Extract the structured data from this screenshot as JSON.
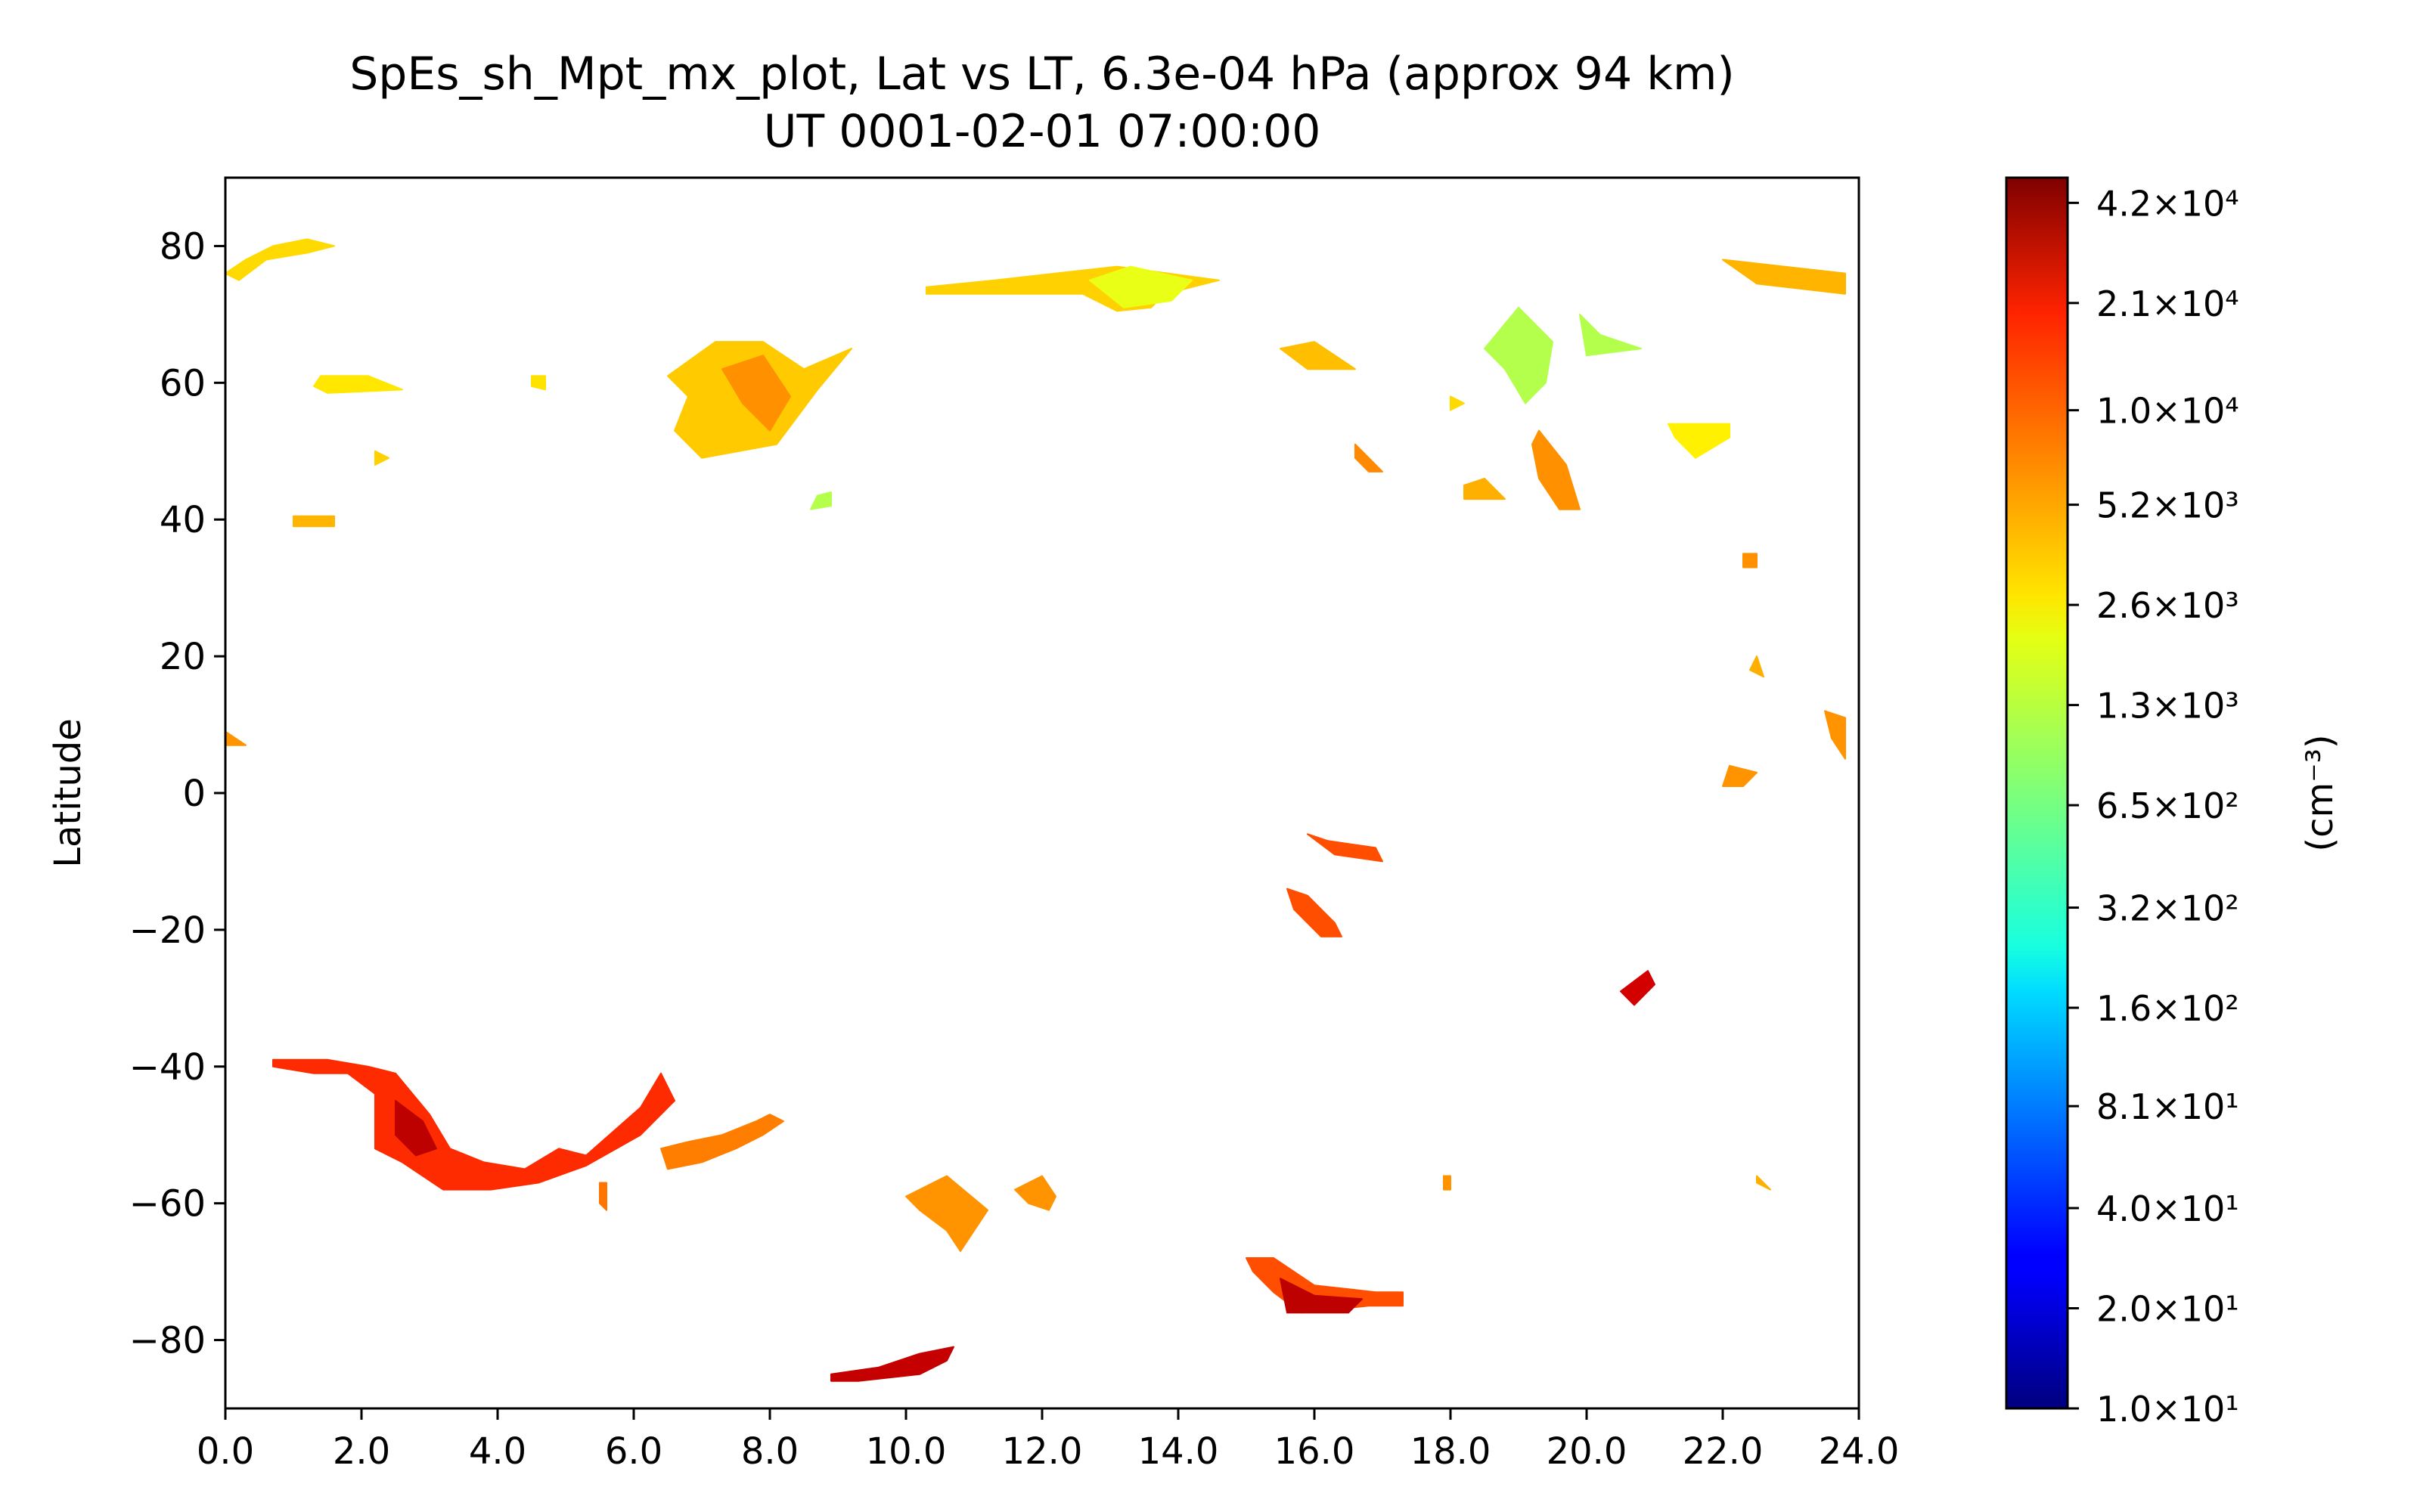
{
  "chart_data": {
    "type": "heatmap",
    "title": "SpEs_sh_Mpt_mx_plot, Lat vs LT, 6.3e-04 hPa (approx 94 km)",
    "subtitle": "UT 0001-02-01 07:00:00",
    "xlabel": "",
    "ylabel": "Latitude",
    "xlim": [
      0,
      24
    ],
    "ylim": [
      -90,
      90
    ],
    "x_ticks": [
      "0.0",
      "2.0",
      "4.0",
      "6.0",
      "8.0",
      "10.0",
      "12.0",
      "14.0",
      "16.0",
      "18.0",
      "20.0",
      "22.0",
      "24.0"
    ],
    "x_tick_values": [
      0,
      2,
      4,
      6,
      8,
      10,
      12,
      14,
      16,
      18,
      20,
      22,
      24
    ],
    "y_ticks": [
      "80",
      "60",
      "40",
      "20",
      "0",
      "−20",
      "−40",
      "−60",
      "−80"
    ],
    "y_tick_values": [
      80,
      60,
      40,
      20,
      0,
      -20,
      -40,
      -60,
      -80
    ],
    "colorbar": {
      "label": "(cm⁻³)",
      "scale": "log",
      "min": 10,
      "max": 50000,
      "colormap": "jet",
      "tick_labels": [
        "4.2×10⁴",
        "2.1×10⁴",
        "1.0×10⁴",
        "5.2×10³",
        "2.6×10³",
        "1.3×10³",
        "6.5×10²",
        "3.2×10²",
        "1.6×10²",
        "8.1×10¹",
        "4.0×10¹",
        "2.0×10¹",
        "1.0×10¹"
      ],
      "tick_values": [
        42000,
        21000,
        10000,
        5200,
        2600,
        1300,
        650,
        320,
        160,
        81,
        40,
        20,
        10
      ]
    },
    "grid": false,
    "patches": [
      {
        "value": 2800,
        "points": [
          [
            0,
            76
          ],
          [
            0.3,
            78
          ],
          [
            0.7,
            80
          ],
          [
            1.2,
            81
          ],
          [
            1.6,
            80
          ],
          [
            1.2,
            79
          ],
          [
            0.6,
            78
          ],
          [
            0.2,
            75
          ]
        ]
      },
      {
        "value": 2500,
        "points": [
          [
            1.4,
            61
          ],
          [
            2.1,
            61
          ],
          [
            2.6,
            59
          ],
          [
            1.5,
            58.5
          ],
          [
            1.3,
            59.5
          ]
        ]
      },
      {
        "value": 3800,
        "points": [
          [
            1.0,
            40.5
          ],
          [
            1.6,
            40.5
          ],
          [
            1.6,
            39
          ],
          [
            1.0,
            39
          ]
        ]
      },
      {
        "value": 2600,
        "points": [
          [
            4.5,
            61
          ],
          [
            4.7,
            61
          ],
          [
            4.7,
            59
          ],
          [
            4.5,
            59.5
          ]
        ]
      },
      {
        "value": 3200,
        "points": [
          [
            6.5,
            61
          ],
          [
            7.2,
            66
          ],
          [
            7.9,
            66
          ],
          [
            8.5,
            62
          ],
          [
            9.2,
            65
          ],
          [
            8.7,
            59
          ],
          [
            8.1,
            51
          ],
          [
            7.0,
            49
          ],
          [
            6.6,
            53
          ],
          [
            6.8,
            58
          ]
        ]
      },
      {
        "value": 5200,
        "points": [
          [
            7.3,
            62
          ],
          [
            7.9,
            64
          ],
          [
            8.3,
            58
          ],
          [
            8.0,
            53
          ],
          [
            7.6,
            57
          ]
        ]
      },
      {
        "value": 1100,
        "points": [
          [
            8.7,
            43.5
          ],
          [
            8.9,
            44
          ],
          [
            8.9,
            42
          ],
          [
            8.6,
            41.5
          ]
        ]
      },
      {
        "value": 3000,
        "points": [
          [
            10.3,
            74
          ],
          [
            11.3,
            75
          ],
          [
            12.2,
            76
          ],
          [
            13.1,
            77
          ],
          [
            14.6,
            75
          ],
          [
            13.8,
            73
          ],
          [
            13.6,
            71
          ],
          [
            13.1,
            70.5
          ],
          [
            12.6,
            73
          ],
          [
            10.3,
            73
          ]
        ]
      },
      {
        "value": 1700,
        "points": [
          [
            12.7,
            75
          ],
          [
            13.3,
            77
          ],
          [
            14.2,
            75
          ],
          [
            13.9,
            72
          ],
          [
            13.2,
            71
          ]
        ]
      },
      {
        "value": 3500,
        "points": [
          [
            15.5,
            65
          ],
          [
            16.0,
            66
          ],
          [
            16.6,
            62
          ],
          [
            15.9,
            62
          ]
        ]
      },
      {
        "value": 5500,
        "points": [
          [
            16.6,
            51
          ],
          [
            16.8,
            49
          ],
          [
            17.0,
            47
          ],
          [
            16.8,
            47
          ],
          [
            16.6,
            49
          ]
        ]
      },
      {
        "value": 4000,
        "points": [
          [
            18.2,
            45
          ],
          [
            18.5,
            46
          ],
          [
            18.8,
            43
          ],
          [
            18.2,
            43
          ]
        ]
      },
      {
        "value": 1100,
        "points": [
          [
            18.5,
            65
          ],
          [
            19.0,
            71
          ],
          [
            19.5,
            66
          ],
          [
            19.4,
            60
          ],
          [
            19.1,
            57
          ],
          [
            18.8,
            62
          ]
        ]
      },
      {
        "value": 5200,
        "points": [
          [
            19.3,
            53
          ],
          [
            19.7,
            48
          ],
          [
            19.9,
            41.5
          ],
          [
            19.6,
            41.5
          ],
          [
            19.3,
            46
          ],
          [
            19.2,
            51
          ]
        ]
      },
      {
        "value": 1100,
        "points": [
          [
            19.9,
            70
          ],
          [
            20.2,
            67
          ],
          [
            20.8,
            65
          ],
          [
            20.0,
            64
          ]
        ]
      },
      {
        "value": 2300,
        "points": [
          [
            21.2,
            54
          ],
          [
            22.1,
            54
          ],
          [
            22.1,
            52
          ],
          [
            21.6,
            49
          ],
          [
            21.3,
            52
          ]
        ]
      },
      {
        "value": 3800,
        "points": [
          [
            22.0,
            78
          ],
          [
            23.8,
            76
          ],
          [
            23.8,
            73
          ],
          [
            22.5,
            74.5
          ]
        ]
      },
      {
        "value": 5200,
        "points": [
          [
            22.3,
            35
          ],
          [
            22.5,
            35
          ],
          [
            22.5,
            33
          ],
          [
            22.3,
            33
          ]
        ]
      },
      {
        "value": 5000,
        "points": [
          [
            23.5,
            12
          ],
          [
            23.8,
            11
          ],
          [
            23.8,
            5
          ],
          [
            23.6,
            8
          ]
        ]
      },
      {
        "value": 5000,
        "points": [
          [
            0,
            9
          ],
          [
            0.3,
            7
          ],
          [
            0,
            7
          ]
        ]
      },
      {
        "value": 5000,
        "points": [
          [
            22.1,
            4
          ],
          [
            22.5,
            3
          ],
          [
            22.3,
            1
          ],
          [
            22.0,
            1
          ]
        ]
      },
      {
        "value": 9000,
        "points": [
          [
            15.9,
            -6
          ],
          [
            16.3,
            -9
          ],
          [
            17.0,
            -10
          ],
          [
            16.9,
            -8
          ],
          [
            16.2,
            -7
          ]
        ]
      },
      {
        "value": 9000,
        "points": [
          [
            15.6,
            -14
          ],
          [
            15.9,
            -15
          ],
          [
            16.3,
            -19
          ],
          [
            16.4,
            -21
          ],
          [
            16.1,
            -21
          ],
          [
            15.7,
            -17
          ]
        ]
      },
      {
        "value": 25000,
        "points": [
          [
            20.5,
            -29
          ],
          [
            20.9,
            -26
          ],
          [
            21.0,
            -28
          ],
          [
            20.7,
            -31
          ]
        ]
      },
      {
        "value": 12000,
        "points": [
          [
            0.7,
            -39
          ],
          [
            1.5,
            -39
          ],
          [
            2.1,
            -40
          ],
          [
            2.5,
            -41
          ],
          [
            3.0,
            -47
          ],
          [
            3.3,
            -52
          ],
          [
            3.8,
            -54
          ],
          [
            4.4,
            -55
          ],
          [
            4.9,
            -52
          ],
          [
            5.3,
            -53
          ],
          [
            6.1,
            -46
          ],
          [
            6.4,
            -41
          ],
          [
            6.6,
            -45
          ],
          [
            6.1,
            -50
          ],
          [
            5.3,
            -54.5
          ],
          [
            4.6,
            -57
          ],
          [
            3.9,
            -58
          ],
          [
            3.2,
            -58
          ],
          [
            2.6,
            -54
          ],
          [
            2.2,
            -52
          ],
          [
            2.2,
            -44
          ],
          [
            1.8,
            -41
          ],
          [
            1.3,
            -41
          ],
          [
            0.7,
            -40
          ]
        ]
      },
      {
        "value": 30000,
        "points": [
          [
            2.5,
            -45
          ],
          [
            2.9,
            -48
          ],
          [
            3.1,
            -52
          ],
          [
            2.8,
            -53
          ],
          [
            2.5,
            -50
          ]
        ]
      },
      {
        "value": 6000,
        "points": [
          [
            6.4,
            -52
          ],
          [
            6.8,
            -51
          ],
          [
            7.3,
            -50
          ],
          [
            7.8,
            -48
          ],
          [
            8.0,
            -47
          ],
          [
            8.2,
            -48
          ],
          [
            7.9,
            -50
          ],
          [
            7.5,
            -52
          ],
          [
            7.0,
            -54
          ],
          [
            6.5,
            -55
          ]
        ]
      },
      {
        "value": 5000,
        "points": [
          [
            10.0,
            -59
          ],
          [
            10.6,
            -56
          ],
          [
            11.2,
            -61
          ],
          [
            10.8,
            -67
          ],
          [
            10.6,
            -64
          ],
          [
            10.2,
            -61
          ]
        ]
      },
      {
        "value": 5000,
        "points": [
          [
            11.6,
            -58
          ],
          [
            12.0,
            -56
          ],
          [
            12.2,
            -59
          ],
          [
            12.1,
            -61
          ],
          [
            11.8,
            -60
          ]
        ]
      },
      {
        "value": 9000,
        "points": [
          [
            15.0,
            -68
          ],
          [
            15.4,
            -68
          ],
          [
            15.7,
            -70
          ],
          [
            16.0,
            -72
          ],
          [
            16.9,
            -73
          ],
          [
            17.3,
            -73
          ],
          [
            17.3,
            -75
          ],
          [
            16.8,
            -75
          ],
          [
            15.8,
            -76
          ],
          [
            15.4,
            -73
          ],
          [
            15.1,
            -70
          ]
        ]
      },
      {
        "value": 30000,
        "points": [
          [
            15.5,
            -71
          ],
          [
            16.0,
            -73.5
          ],
          [
            16.7,
            -74
          ],
          [
            16.5,
            -76
          ],
          [
            15.6,
            -76
          ]
        ]
      },
      {
        "value": 28000,
        "points": [
          [
            8.9,
            -85
          ],
          [
            9.6,
            -84
          ],
          [
            10.2,
            -82
          ],
          [
            10.7,
            -81
          ],
          [
            10.6,
            -83
          ],
          [
            10.2,
            -85
          ],
          [
            9.3,
            -86
          ],
          [
            8.9,
            -86
          ]
        ]
      },
      {
        "value": 6500,
        "points": [
          [
            5.5,
            -57
          ],
          [
            5.6,
            -57
          ],
          [
            5.6,
            -61
          ],
          [
            5.5,
            -60
          ]
        ]
      },
      {
        "value": 5000,
        "points": [
          [
            17.9,
            -56
          ],
          [
            18.0,
            -56
          ],
          [
            18.0,
            -58
          ],
          [
            17.9,
            -58
          ]
        ]
      },
      {
        "value": 4000,
        "points": [
          [
            22.5,
            20
          ],
          [
            22.6,
            17
          ],
          [
            22.4,
            18
          ]
        ]
      },
      {
        "value": 4000,
        "points": [
          [
            22.5,
            -56
          ],
          [
            22.7,
            -58
          ],
          [
            22.5,
            -57
          ]
        ]
      },
      {
        "value": 3000,
        "points": [
          [
            2.2,
            50
          ],
          [
            2.4,
            49
          ],
          [
            2.2,
            48
          ]
        ]
      },
      {
        "value": 2800,
        "points": [
          [
            18.0,
            58
          ],
          [
            18.2,
            57
          ],
          [
            18.0,
            56
          ]
        ]
      }
    ]
  }
}
